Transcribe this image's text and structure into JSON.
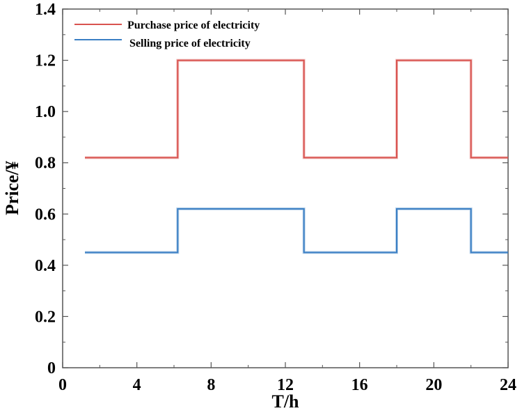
{
  "chart_data": {
    "type": "line",
    "step": true,
    "xlabel": "T/h",
    "ylabel": "Price/¥",
    "xlim": [
      0,
      24
    ],
    "ylim": [
      0,
      1.4
    ],
    "xticks": [
      0,
      4,
      8,
      12,
      16,
      20,
      24
    ],
    "xtick_labels": [
      "0",
      "4",
      "8",
      "12",
      "16",
      "20",
      "24"
    ],
    "yticks": [
      0,
      0.2,
      0.4,
      0.6,
      0.8,
      1.0,
      1.2,
      1.4
    ],
    "ytick_labels": [
      "0",
      "0.2",
      "0.4",
      "0.6",
      "0.8",
      "1.0",
      "1.2",
      "1.4"
    ],
    "grid": false,
    "legend_position": "top-left",
    "series": [
      {
        "name": "Purchase price of electricity",
        "color": "#d9534f",
        "points": [
          [
            1.2,
            0.82
          ],
          [
            6.2,
            0.82
          ],
          [
            6.2,
            1.2
          ],
          [
            13.0,
            1.2
          ],
          [
            13.0,
            0.82
          ],
          [
            18.0,
            0.82
          ],
          [
            18.0,
            1.2
          ],
          [
            22.0,
            1.2
          ],
          [
            22.0,
            0.82
          ],
          [
            24.0,
            0.82
          ]
        ]
      },
      {
        "name": "Selling price of electricity",
        "color": "#3a7fc4",
        "points": [
          [
            1.2,
            0.45
          ],
          [
            6.2,
            0.45
          ],
          [
            6.2,
            0.62
          ],
          [
            13.0,
            0.62
          ],
          [
            13.0,
            0.45
          ],
          [
            18.0,
            0.45
          ],
          [
            18.0,
            0.62
          ],
          [
            22.0,
            0.62
          ],
          [
            22.0,
            0.45
          ],
          [
            24.0,
            0.45
          ]
        ]
      }
    ]
  }
}
